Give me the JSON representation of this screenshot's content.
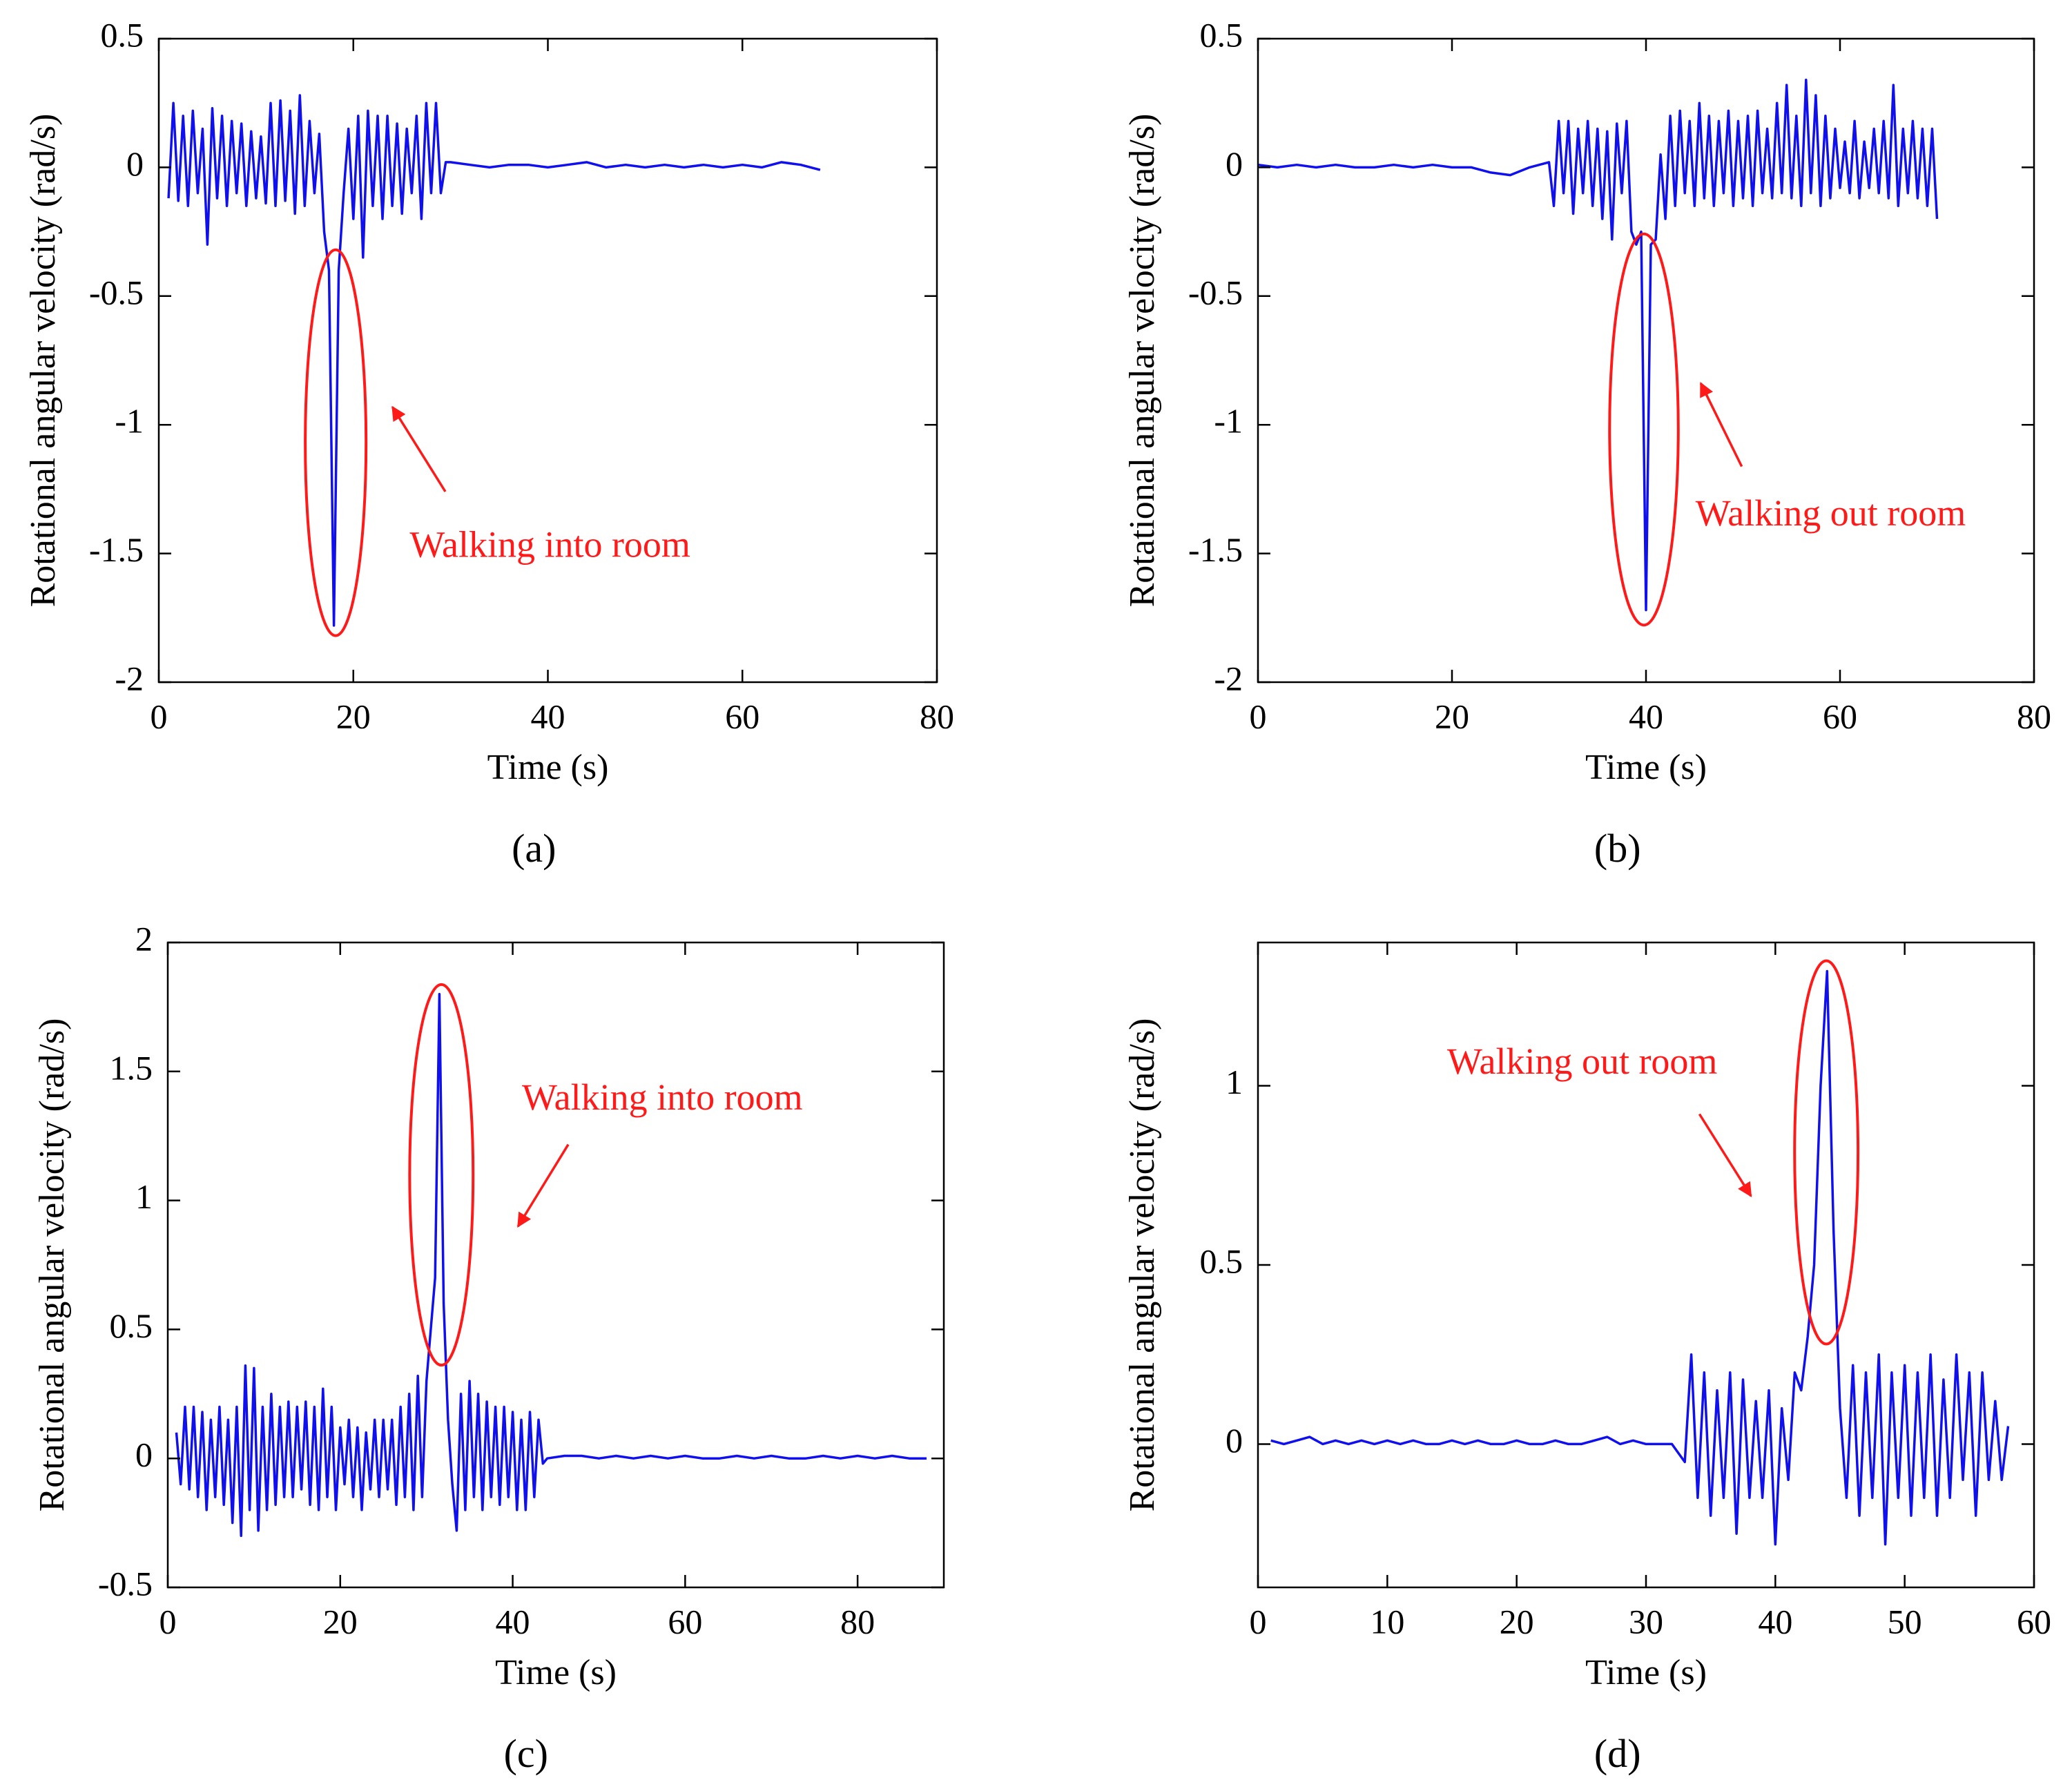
{
  "chart_data": [
    {
      "type": "line",
      "panel_label": "(a)",
      "xlabel": "Time (s)",
      "ylabel": "Rotational angular velocity (rad/s)",
      "annotation": "Walking into room",
      "xlim": [
        0,
        80
      ],
      "ylim": [
        -2,
        0.5
      ],
      "xticks": [
        0,
        20,
        40,
        60,
        80
      ],
      "yticks": [
        -2,
        -1.5,
        -1,
        -0.5,
        0,
        0.5
      ],
      "x": [
        1,
        1.5,
        2,
        2.5,
        3,
        3.5,
        4,
        4.5,
        5,
        5.5,
        6,
        6.5,
        7,
        7.5,
        8,
        8.5,
        9,
        9.5,
        10,
        10.5,
        11,
        11.5,
        12,
        12.5,
        13,
        13.5,
        14,
        14.5,
        15,
        15.5,
        16,
        16.5,
        17,
        17.5,
        18,
        18.5,
        19,
        19.5,
        20,
        20.5,
        21,
        21.5,
        22,
        22.5,
        23,
        23.5,
        24,
        24.5,
        25,
        25.5,
        26,
        26.5,
        27,
        27.5,
        28,
        28.5,
        29,
        29.5,
        30,
        32,
        34,
        36,
        38,
        40,
        42,
        44,
        46,
        48,
        50,
        52,
        54,
        56,
        58,
        60,
        62,
        64,
        66,
        68
      ],
      "series": [
        {
          "color": "#1010ee",
          "values": [
            -0.12,
            0.25,
            -0.13,
            0.2,
            -0.15,
            0.22,
            -0.1,
            0.15,
            -0.3,
            0.23,
            -0.12,
            0.2,
            -0.15,
            0.18,
            -0.1,
            0.17,
            -0.15,
            0.14,
            -0.12,
            0.12,
            -0.14,
            0.25,
            -0.15,
            0.26,
            -0.13,
            0.22,
            -0.18,
            0.28,
            -0.15,
            0.18,
            -0.1,
            0.13,
            -0.25,
            -0.4,
            -1.78,
            -0.4,
            -0.1,
            0.15,
            -0.2,
            0.2,
            -0.35,
            0.22,
            -0.15,
            0.2,
            -0.2,
            0.2,
            -0.15,
            0.17,
            -0.18,
            0.15,
            -0.1,
            0.2,
            -0.2,
            0.25,
            -0.1,
            0.25,
            -0.1,
            0.02,
            0.02,
            0.01,
            0.0,
            0.01,
            0.01,
            0.0,
            0.01,
            0.02,
            0.0,
            0.01,
            0.0,
            0.01,
            0.0,
            0.01,
            0.0,
            0.01,
            0.0,
            0.02,
            0.01,
            -0.01
          ]
        }
      ]
    },
    {
      "type": "line",
      "panel_label": "(b)",
      "xlabel": "Time (s)",
      "ylabel": "Rotational angular velocity (rad/s)",
      "annotation": "Walking out room",
      "xlim": [
        0,
        80
      ],
      "ylim": [
        -2,
        0.5
      ],
      "xticks": [
        0,
        20,
        40,
        60,
        80
      ],
      "yticks": [
        -2,
        -1.5,
        -1,
        -0.5,
        0,
        0.5
      ],
      "x": [
        0,
        2,
        4,
        6,
        8,
        10,
        12,
        14,
        16,
        18,
        20,
        22,
        24,
        26,
        28,
        30,
        30.5,
        31,
        31.5,
        32,
        32.5,
        33,
        33.5,
        34,
        34.5,
        35,
        35.5,
        36,
        36.5,
        37,
        37.5,
        38,
        38.5,
        39,
        39.5,
        40,
        40.5,
        41,
        41.5,
        42,
        42.5,
        43,
        43.5,
        44,
        44.5,
        45,
        45.5,
        46,
        46.5,
        47,
        47.5,
        48,
        48.5,
        49,
        49.5,
        50,
        50.5,
        51,
        51.5,
        52,
        52.5,
        53,
        53.5,
        54,
        54.5,
        55,
        55.5,
        56,
        56.5,
        57,
        57.5,
        58,
        58.5,
        59,
        59.5,
        60,
        60.5,
        61,
        61.5,
        62,
        62.5,
        63,
        63.5,
        64,
        64.5,
        65,
        65.5,
        66,
        66.5,
        67,
        67.5,
        68,
        68.5,
        69,
        69.5,
        70
      ],
      "series": [
        {
          "color": "#1010ee",
          "values": [
            0.01,
            0.0,
            0.01,
            0.0,
            0.01,
            0.0,
            0.0,
            0.01,
            0.0,
            0.01,
            0.0,
            0.0,
            -0.02,
            -0.03,
            0.0,
            0.02,
            -0.15,
            0.18,
            -0.1,
            0.18,
            -0.18,
            0.15,
            -0.1,
            0.18,
            -0.15,
            0.15,
            -0.2,
            0.14,
            -0.28,
            0.17,
            -0.1,
            0.18,
            -0.25,
            -0.3,
            -0.25,
            -1.72,
            -0.3,
            -0.28,
            0.05,
            -0.2,
            0.2,
            -0.15,
            0.22,
            -0.1,
            0.18,
            -0.15,
            0.25,
            -0.12,
            0.2,
            -0.15,
            0.18,
            -0.1,
            0.22,
            -0.15,
            0.18,
            -0.12,
            0.2,
            -0.15,
            0.22,
            -0.1,
            0.15,
            -0.12,
            0.25,
            -0.1,
            0.32,
            -0.12,
            0.2,
            -0.15,
            0.34,
            -0.1,
            0.28,
            -0.15,
            0.2,
            -0.12,
            0.15,
            -0.08,
            0.1,
            -0.1,
            0.18,
            -0.12,
            0.1,
            -0.08,
            0.15,
            -0.1,
            0.18,
            -0.12,
            0.32,
            -0.15,
            0.15,
            -0.1,
            0.18,
            -0.12,
            0.15,
            -0.15,
            0.15,
            -0.2
          ]
        }
      ]
    },
    {
      "type": "line",
      "panel_label": "(c)",
      "xlabel": "Time (s)",
      "ylabel": "Rotational angular velocity (rad/s)",
      "annotation": "Walking into room",
      "xlim": [
        0,
        90
      ],
      "ylim": [
        -0.5,
        2
      ],
      "xticks": [
        0,
        20,
        40,
        60,
        80
      ],
      "yticks": [
        -0.5,
        0,
        0.5,
        1,
        1.5,
        2
      ],
      "x": [
        1,
        1.5,
        2,
        2.5,
        3,
        3.5,
        4,
        4.5,
        5,
        5.5,
        6,
        6.5,
        7,
        7.5,
        8,
        8.5,
        9,
        9.5,
        10,
        10.5,
        11,
        11.5,
        12,
        12.5,
        13,
        13.5,
        14,
        14.5,
        15,
        15.5,
        16,
        16.5,
        17,
        17.5,
        18,
        18.5,
        19,
        19.5,
        20,
        20.5,
        21,
        21.5,
        22,
        22.5,
        23,
        23.5,
        24,
        24.5,
        25,
        25.5,
        26,
        26.5,
        27,
        27.5,
        28,
        28.5,
        29,
        29.5,
        30,
        30.5,
        31,
        31.5,
        32,
        32.5,
        33,
        33.5,
        34,
        34.5,
        35,
        35.5,
        36,
        36.5,
        37,
        37.5,
        38,
        38.5,
        39,
        39.5,
        40,
        40.5,
        41,
        41.5,
        42,
        42.5,
        43,
        43.5,
        44,
        46,
        48,
        50,
        52,
        54,
        56,
        58,
        60,
        62,
        64,
        66,
        68,
        70,
        72,
        74,
        76,
        78,
        80,
        82,
        84,
        86,
        88
      ],
      "series": [
        {
          "color": "#1010ee",
          "values": [
            0.1,
            -0.1,
            0.2,
            -0.12,
            0.2,
            -0.15,
            0.18,
            -0.2,
            0.15,
            -0.15,
            0.2,
            -0.18,
            0.15,
            -0.25,
            0.2,
            -0.3,
            0.36,
            -0.2,
            0.35,
            -0.28,
            0.2,
            -0.2,
            0.25,
            -0.18,
            0.2,
            -0.15,
            0.22,
            -0.15,
            0.2,
            -0.12,
            0.22,
            -0.18,
            0.2,
            -0.2,
            0.27,
            -0.15,
            0.2,
            -0.2,
            0.12,
            -0.1,
            0.15,
            -0.15,
            0.12,
            -0.2,
            0.1,
            -0.12,
            0.15,
            -0.15,
            0.15,
            -0.12,
            0.15,
            -0.18,
            0.2,
            -0.15,
            0.25,
            -0.2,
            0.32,
            -0.15,
            0.3,
            0.5,
            0.7,
            1.8,
            0.6,
            0.15,
            -0.1,
            -0.28,
            0.25,
            -0.2,
            0.3,
            -0.15,
            0.25,
            -0.2,
            0.22,
            -0.15,
            0.2,
            -0.18,
            0.2,
            -0.15,
            0.18,
            -0.2,
            0.15,
            -0.2,
            0.18,
            -0.15,
            0.15,
            -0.02,
            0.0,
            0.01,
            0.01,
            0.0,
            0.01,
            0.0,
            0.01,
            0.0,
            0.01,
            0.0,
            0.0,
            0.01,
            0.0,
            0.01,
            0.0,
            0.0,
            0.01,
            0.0,
            0.01,
            0.0,
            0.01,
            0.0,
            0.0
          ]
        }
      ]
    },
    {
      "type": "line",
      "panel_label": "(d)",
      "xlabel": "Time (s)",
      "ylabel": "Rotational angular velocity (rad/s)",
      "annotation": "Walking out room",
      "xlim": [
        0,
        60
      ],
      "ylim": [
        -0.4,
        1.4
      ],
      "xticks": [
        0,
        10,
        20,
        30,
        40,
        50,
        60
      ],
      "yticks": [
        0,
        0.5,
        1
      ],
      "x": [
        1,
        2,
        3,
        4,
        5,
        6,
        7,
        8,
        9,
        10,
        11,
        12,
        13,
        14,
        15,
        16,
        17,
        18,
        19,
        20,
        21,
        22,
        23,
        24,
        25,
        26,
        27,
        28,
        29,
        30,
        31,
        32,
        33,
        33.5,
        34,
        34.5,
        35,
        35.5,
        36,
        36.5,
        37,
        37.5,
        38,
        38.5,
        39,
        39.5,
        40,
        40.5,
        41,
        41.5,
        42,
        42.5,
        43,
        43.5,
        44,
        44.5,
        45,
        45.5,
        46,
        46.5,
        47,
        47.5,
        48,
        48.5,
        49,
        49.5,
        50,
        50.5,
        51,
        51.5,
        52,
        52.5,
        53,
        53.5,
        54,
        54.5,
        55,
        55.5,
        56,
        56.5,
        57,
        57.5,
        58
      ],
      "series": [
        {
          "color": "#1010ee",
          "values": [
            0.01,
            0.0,
            0.01,
            0.02,
            0.0,
            0.01,
            0.0,
            0.01,
            0.0,
            0.01,
            0.0,
            0.01,
            0.0,
            0.0,
            0.01,
            0.0,
            0.01,
            0.0,
            0.0,
            0.01,
            0.0,
            0.0,
            0.01,
            0.0,
            0.0,
            0.01,
            0.02,
            0.0,
            0.01,
            0.0,
            0.0,
            0.0,
            -0.05,
            0.25,
            -0.15,
            0.2,
            -0.2,
            0.15,
            -0.15,
            0.2,
            -0.25,
            0.18,
            -0.15,
            0.12,
            -0.15,
            0.15,
            -0.28,
            0.1,
            -0.1,
            0.2,
            0.15,
            0.3,
            0.5,
            1.0,
            1.32,
            0.6,
            0.1,
            -0.15,
            0.22,
            -0.2,
            0.2,
            -0.15,
            0.25,
            -0.28,
            0.2,
            -0.15,
            0.22,
            -0.2,
            0.2,
            -0.15,
            0.25,
            -0.2,
            0.18,
            -0.15,
            0.25,
            -0.1,
            0.2,
            -0.2,
            0.2,
            -0.1,
            0.12,
            -0.1,
            0.05
          ]
        }
      ]
    }
  ]
}
